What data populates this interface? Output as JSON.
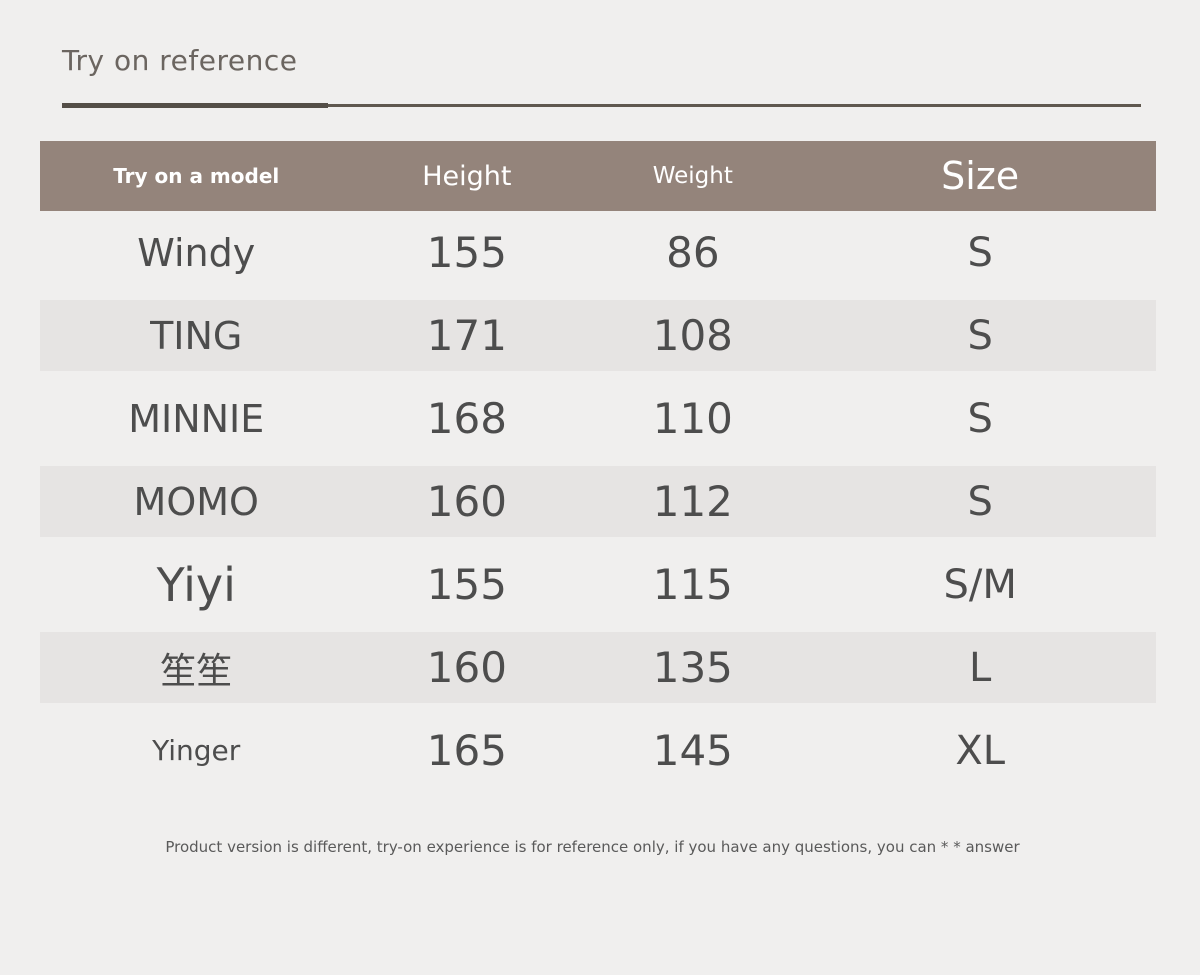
{
  "page": {
    "title": "Try on reference",
    "footnote": "Product version is different, try-on experience is for reference only, if you have any questions, you can * * answer"
  },
  "colors": {
    "page_background": "#f0efee",
    "header_background": "#94847b",
    "header_text": "#ffffff",
    "stripe_background": "#e6e4e3",
    "body_text": "#4d4d4d",
    "title_text": "#6b6560",
    "rule_thick": "#544e47",
    "rule_thin": "#5f584f",
    "footnote_text": "#5a5a5a"
  },
  "table": {
    "columns": [
      {
        "key": "model",
        "label": "Try on a model"
      },
      {
        "key": "height",
        "label": "Height"
      },
      {
        "key": "weight",
        "label": "Weight"
      },
      {
        "key": "size",
        "label": "Size"
      }
    ],
    "rows": [
      {
        "model": "Windy",
        "height": "155",
        "weight": "86",
        "size": "S"
      },
      {
        "model": "TING",
        "height": "171",
        "weight": "108",
        "size": "S"
      },
      {
        "model": "MINNIE",
        "height": "168",
        "weight": "110",
        "size": "S"
      },
      {
        "model": "MOMO",
        "height": "160",
        "weight": "112",
        "size": "S"
      },
      {
        "model": "Yiyi",
        "height": "155",
        "weight": "115",
        "size": "S/M"
      },
      {
        "model": "笙笙",
        "height": "160",
        "weight": "135",
        "size": "L"
      },
      {
        "model": "Yinger",
        "height": "165",
        "weight": "145",
        "size": "XL"
      }
    ]
  }
}
